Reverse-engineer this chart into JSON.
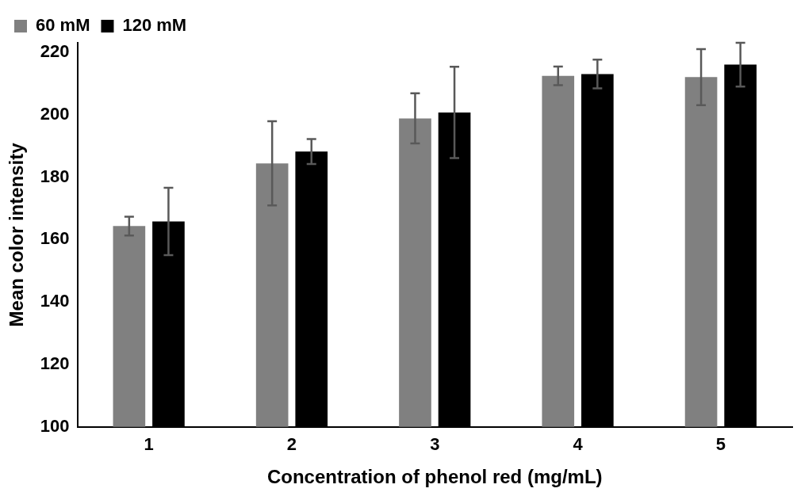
{
  "chart_data": {
    "type": "bar",
    "xlabel": "Concentration of phenol red (mg/mL)",
    "ylabel": "Mean color intensity",
    "categories": [
      "1",
      "2",
      "3",
      "4",
      "5"
    ],
    "series": [
      {
        "name": "60 mM",
        "color": "#808080",
        "values": [
          164.3,
          184.4,
          198.8,
          212.4,
          212.0
        ],
        "errors": [
          3,
          13.5,
          8,
          3,
          9
        ]
      },
      {
        "name": "120 mM",
        "color": "#000000",
        "values": [
          165.8,
          188.2,
          200.7,
          213.0,
          216.0
        ],
        "errors": [
          10.8,
          4,
          14.6,
          4.6,
          7
        ]
      }
    ],
    "ylim": [
      100,
      223
    ],
    "yticks": [
      100,
      120,
      140,
      160,
      180,
      200,
      220
    ],
    "grid": false,
    "legend": "top left"
  }
}
